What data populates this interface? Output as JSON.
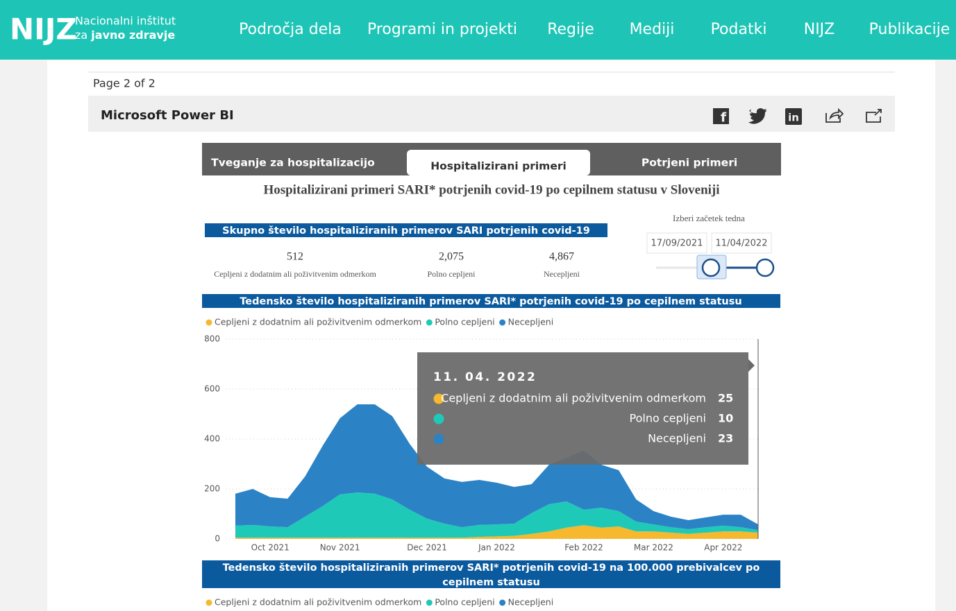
{
  "header": {
    "logo": "NIJZ",
    "logo_line1": "Nacionalni inštitut",
    "logo_line2_prefix": "za",
    "logo_line2_bold": "javno zdravje",
    "nav": [
      "Področja dela",
      "Programi in projekti",
      "Regije",
      "Mediji",
      "Podatki",
      "NIJZ",
      "Publikacije"
    ]
  },
  "page_indicator": "Page 2 of 2",
  "embed_title": "Microsoft Power BI",
  "tabs": [
    "Tveganje za hospitalizacijo",
    "Hospitalizirani primeri",
    "Potrjeni primeri"
  ],
  "active_tab": 1,
  "report_title": "Hospitalizirani primeri SARI* potrjenih covid-19 po cepilnem statusu v Sloveniji",
  "kpi": {
    "title": "Skupno število hospitaliziranih primerov SARI potrjenih covid-19",
    "items": [
      {
        "value": "512",
        "label": "Cepljeni z dodatnim ali poživitvenim odmerkom"
      },
      {
        "value": "2,075",
        "label": "Polno cepljeni"
      },
      {
        "value": "4,867",
        "label": "Necepljeni"
      }
    ]
  },
  "date_slicer": {
    "label": "Izberi začetek tedna",
    "start": "17/09/2021",
    "end": "11/04/2022"
  },
  "chart_data": {
    "type": "area",
    "stacked": true,
    "title": "Tedensko število hospitaliziranih primerov SARI* potrjenih covid-19 po cepilnem statusu",
    "categories": [
      null,
      null,
      "Oct 2021",
      null,
      null,
      null,
      "Nov 2021",
      null,
      null,
      null,
      null,
      "Dec 2021",
      null,
      null,
      null,
      "Jan 2022",
      null,
      null,
      null,
      null,
      "Feb 2022",
      null,
      null,
      null,
      "Mar 2022",
      null,
      null,
      null,
      "Apr 2022",
      null,
      null
    ],
    "series": [
      {
        "name": "Cepljeni z dodatnim ali poživitvenim odmerkom",
        "color": "#f5b82e",
        "values": [
          5,
          5,
          5,
          5,
          5,
          5,
          5,
          5,
          5,
          5,
          5,
          5,
          5,
          5,
          8,
          10,
          12,
          20,
          30,
          45,
          55,
          45,
          50,
          30,
          30,
          25,
          20,
          25,
          30,
          30,
          25
        ]
      },
      {
        "name": "Polno cepljeni",
        "color": "#1fc9b7",
        "values": [
          48,
          51,
          45,
          42,
          84,
          126,
          173,
          181,
          176,
          153,
          112,
          76,
          56,
          42,
          48,
          48,
          49,
          83,
          109,
          105,
          62,
          80,
          61,
          39,
          28,
          22,
          19,
          22,
          23,
          17,
          10
        ]
      },
      {
        "name": "Necepljeni",
        "color": "#2b83c6",
        "values": [
          128,
          144,
          117,
          114,
          161,
          241,
          305,
          353,
          358,
          334,
          264,
          208,
          181,
          181,
          180,
          167,
          147,
          116,
          158,
          175,
          236,
          172,
          164,
          89,
          53,
          42,
          36,
          39,
          44,
          50,
          23
        ]
      }
    ],
    "ylim": [
      0,
      800
    ],
    "yticks": [
      0,
      200,
      400,
      600,
      800
    ],
    "grid": true
  },
  "tooltip": {
    "date": "11. 04. 2022"
  },
  "second_chart": {
    "title": "Tedensko število hospitaliziranih primerov SARI* potrjenih covid-19 na 100.000 prebivalcev po cepilnem statusu"
  }
}
